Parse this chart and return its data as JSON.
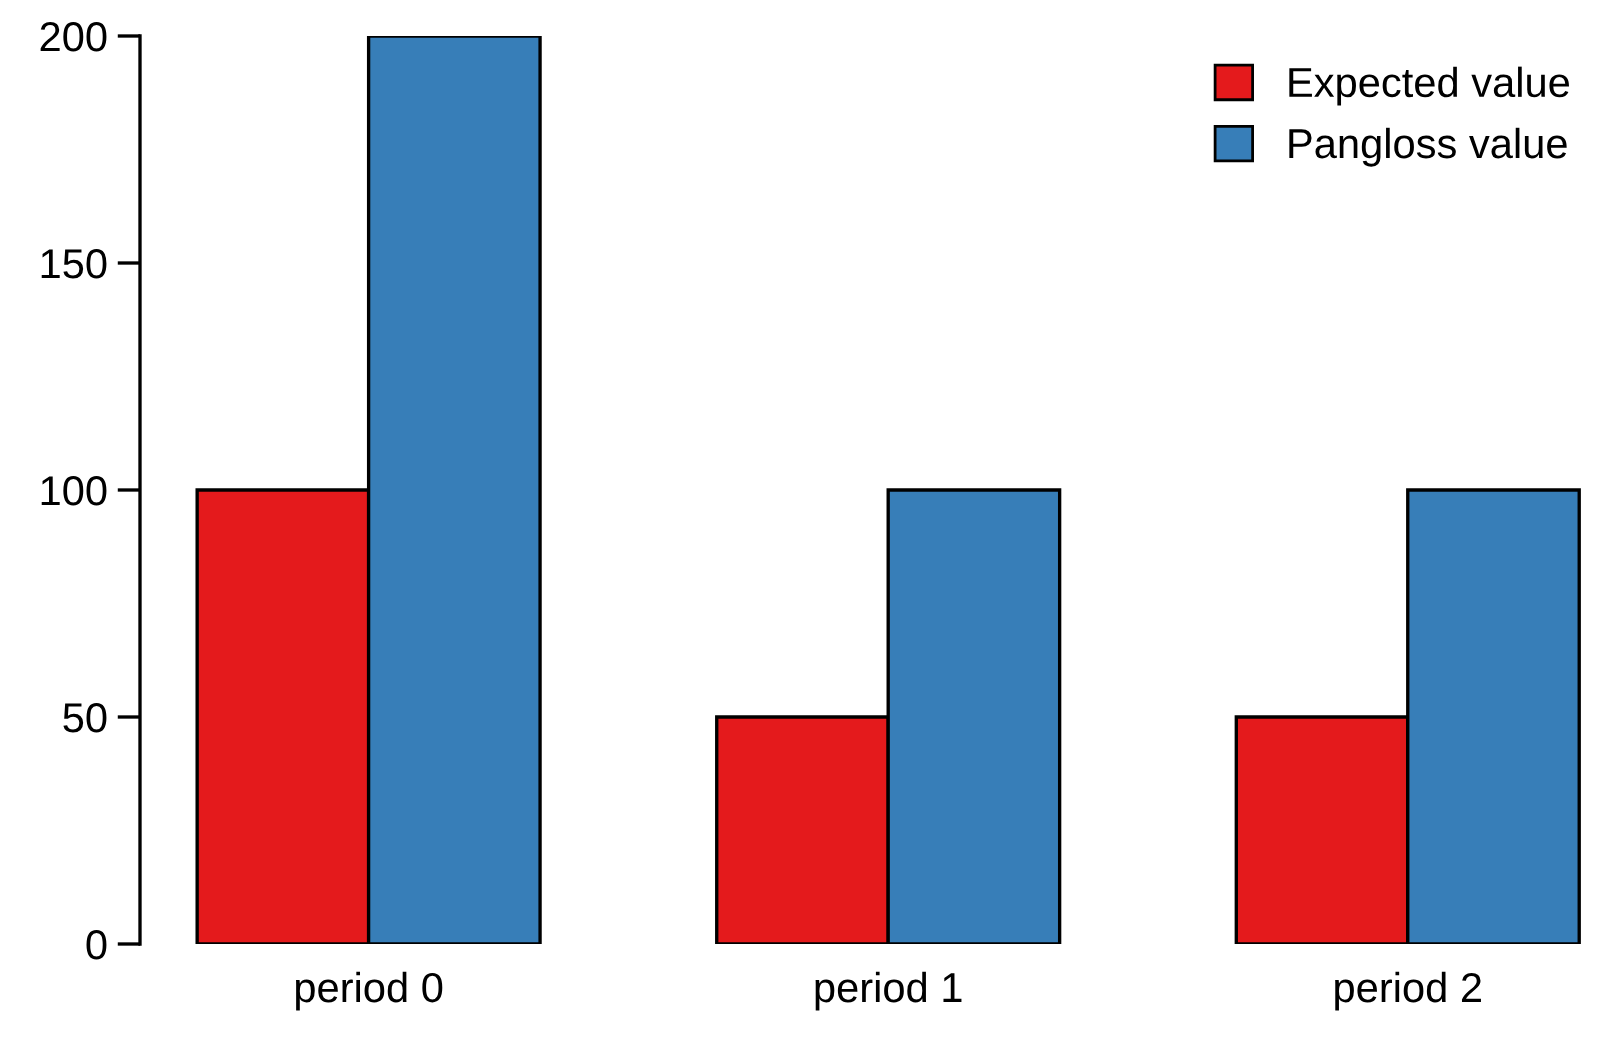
{
  "chart_data": {
    "type": "bar",
    "categories": [
      "period 0",
      "period 1",
      "period 2"
    ],
    "series": [
      {
        "name": "Expected value",
        "color": "#e41a1c",
        "values": [
          100,
          50,
          50
        ]
      },
      {
        "name": "Pangloss value",
        "color": "#377eb8",
        "values": [
          200,
          100,
          100
        ]
      }
    ],
    "ylim": [
      0,
      200
    ],
    "yticks": [
      0,
      50,
      100,
      150,
      200
    ],
    "grid": false,
    "legend": "top right"
  }
}
